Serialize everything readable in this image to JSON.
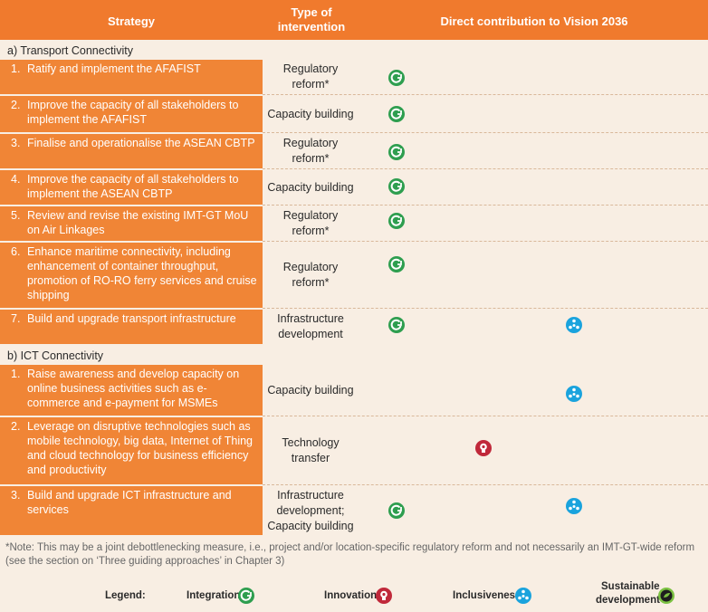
{
  "header": {
    "strategy": "Strategy",
    "type": "Type of intervention",
    "contribution": "Direct contribution to Vision 2036"
  },
  "sections": [
    {
      "label": "a)  Transport Connectivity",
      "rows": [
        {
          "num": "1.",
          "text": "Ratify and implement the AFAFIST",
          "type": "Regulatory reform*",
          "icons": [
            "integration"
          ]
        },
        {
          "num": "2.",
          "text": "Improve the capacity of all stakeholders  to implement the AFAFIST",
          "type": "Capacity building",
          "icons": [
            "integration"
          ]
        },
        {
          "num": "3.",
          "text": "Finalise and operationalise the ASEAN CBTP",
          "type": "Regulatory reform*",
          "icons": [
            "integration"
          ]
        },
        {
          "num": "4.",
          "text": "Improve the capacity of all stakeholders  to implement the ASEAN CBTP",
          "type": "Capacity building",
          "icons": [
            "integration"
          ]
        },
        {
          "num": "5.",
          "text": "Review and revise the existing IMT-GT MoU on Air Linkages",
          "type": "Regulatory reform*",
          "icons": [
            "integration"
          ]
        },
        {
          "num": "6.",
          "text": "Enhance maritime connectivity, including enhancement of container throughput, promotion of RO-RO ferry services and cruise shipping",
          "type": "Regulatory reform*",
          "icons": [
            "integration"
          ]
        },
        {
          "num": "7.",
          "text": "Build and upgrade transport infrastructure",
          "type": "Infrastructure development",
          "icons": [
            "integration",
            "inclusiveness"
          ]
        }
      ]
    },
    {
      "label": "b)  ICT Connectivity",
      "rows": [
        {
          "num": "1.",
          "text": "Raise awareness and develop capacity on online business activities such as e-commerce and e-payment for MSMEs",
          "type": "Capacity building",
          "icons": [
            "inclusiveness"
          ]
        },
        {
          "num": "2.",
          "text": "Leverage on disruptive technologies such as mobile technology, big data, Internet of Thing and cloud technology for business efficiency and productivity",
          "type": "Technology transfer",
          "icons": [
            "innovation"
          ]
        },
        {
          "num": "3.",
          "text": "Build and upgrade ICT infrastructure and services",
          "type": "Infrastructure development; Capacity building",
          "icons": [
            "integration",
            "inclusiveness"
          ]
        }
      ]
    }
  ],
  "note": "*Note: This may be a joint debottlenecking measure, i.e., project and/or location-specific regulatory reform and not necessarily an IMT-GT-wide reform (see the section on ‘Three guiding approaches’ in Chapter 3)",
  "legend": {
    "title": "Legend:",
    "integration": "Integration",
    "innovation": "Innovation",
    "inclusiveness": "Inclusiveness",
    "sustainable_line1": "Sustainable",
    "sustainable_line2": "development"
  },
  "colors": {
    "header_bg": "#f07a2d",
    "strategy_bg": "#f08536",
    "integration": "#2e9e4f",
    "innovation": "#c0283a",
    "inclusiveness": "#1aa3dd",
    "sustainable": "#1e1e1e"
  }
}
